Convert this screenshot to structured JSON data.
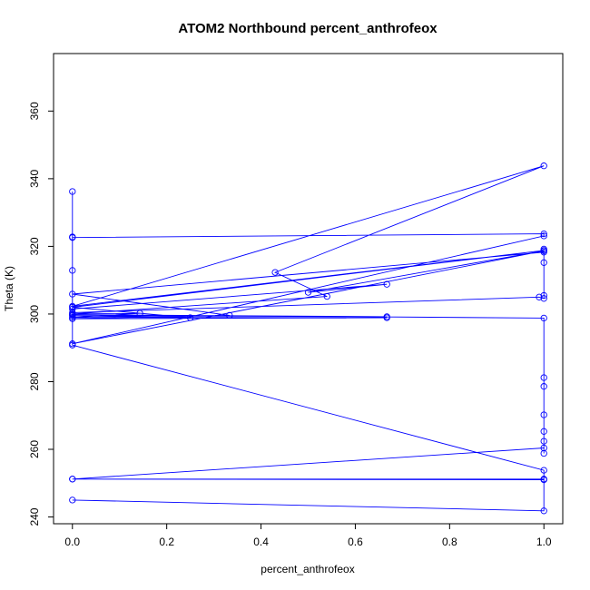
{
  "chart_data": {
    "type": "line",
    "title": "ATOM2 Northbound percent_anthrofeox",
    "xlabel": "percent_anthrofeox",
    "ylabel": "Theta (K)",
    "xlim": [
      -0.04,
      1.04
    ],
    "ylim": [
      238,
      377
    ],
    "x_ticks": [
      0.0,
      0.2,
      0.4,
      0.6,
      0.8,
      1.0
    ],
    "x_tick_labels": [
      "0.0",
      "0.2",
      "0.4",
      "0.6",
      "0.8",
      "1.0"
    ],
    "y_ticks": [
      240,
      260,
      280,
      300,
      320,
      340,
      360
    ],
    "y_tick_labels": [
      "240",
      "260",
      "280",
      "300",
      "320",
      "340",
      "360"
    ],
    "grid": false,
    "series_color": "#0000ff",
    "points_style": "open-circle",
    "series": [
      {
        "points": [
          [
            0.0,
            245.0
          ],
          [
            1.0,
            241.8
          ],
          [
            1.0,
            251.2
          ],
          [
            0.0,
            251.2
          ],
          [
            1.0,
            260.4
          ],
          [
            1.0,
            258.8
          ],
          [
            1.0,
            262.4
          ],
          [
            1.0,
            265.3
          ],
          [
            1.0,
            270.2
          ],
          [
            1.0,
            278.6
          ],
          [
            1.0,
            281.2
          ],
          [
            1.0,
            298.8
          ],
          [
            0.0,
            299.8
          ],
          [
            0.667,
            299.2
          ],
          [
            0.0,
            299.5
          ],
          [
            0.25,
            298.9
          ],
          [
            0.0,
            302.0
          ],
          [
            1.0,
            318.8
          ],
          [
            0.0,
            302.3
          ],
          [
            1.0,
            343.8
          ],
          [
            0.43,
            312.3
          ],
          [
            0.54,
            305.2
          ],
          [
            0.0,
            300.0
          ],
          [
            0.143,
            300.2
          ],
          [
            0.0,
            299.0
          ],
          [
            0.667,
            298.9
          ],
          [
            0.0,
            298.6
          ],
          [
            0.333,
            299.6
          ],
          [
            0.0,
            305.9
          ],
          [
            1.0,
            318.3
          ],
          [
            1.0,
            319.2
          ],
          [
            1.0,
            315.2
          ],
          [
            1.0,
            305.5
          ],
          [
            1.0,
            304.6
          ],
          [
            0.99,
            305.0
          ],
          [
            0.0,
            300.4
          ],
          [
            0.0,
            322.6
          ],
          [
            1.0,
            323.7
          ],
          [
            1.0,
            323.1
          ],
          [
            0.0,
            291.2
          ],
          [
            1.0,
            318.7
          ],
          [
            0.5,
            306.4
          ],
          [
            0.667,
            308.8
          ],
          [
            0.0,
            301.5
          ],
          [
            0.0,
            312.9
          ],
          [
            0.0,
            336.2
          ],
          [
            0.0,
            322.8
          ],
          [
            0.0,
            290.8
          ],
          [
            1.0,
            253.8
          ],
          [
            1.0,
            251.0
          ],
          [
            0.0,
            251.2
          ]
        ]
      }
    ]
  }
}
